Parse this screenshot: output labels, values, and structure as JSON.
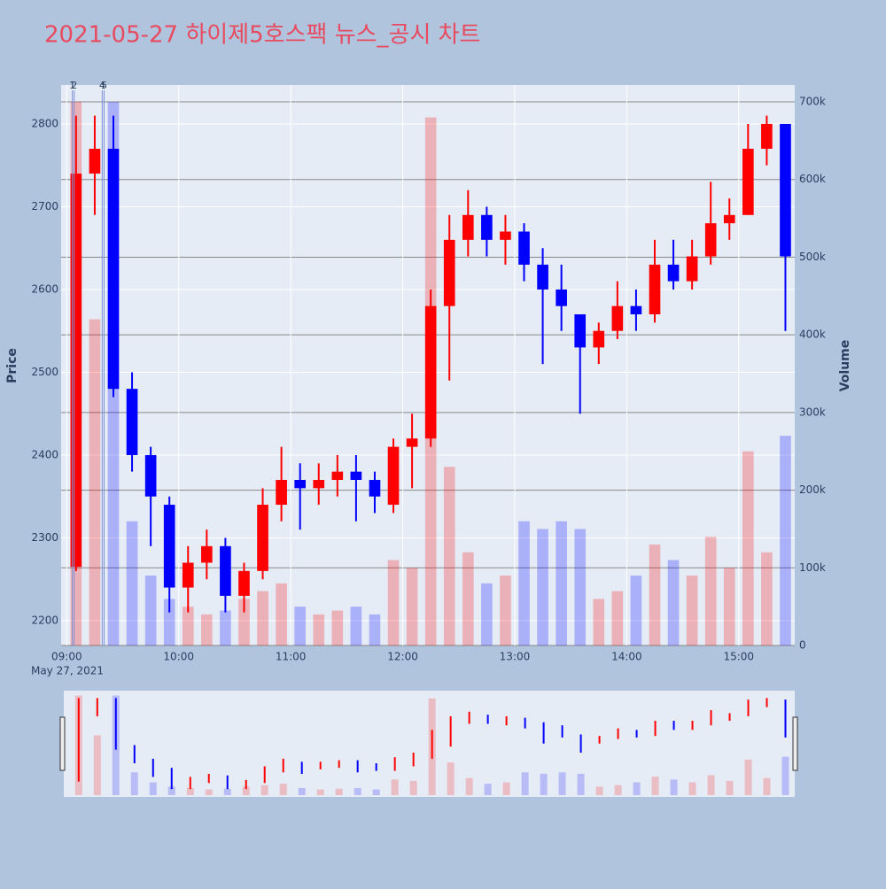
{
  "chart_data": {
    "type": "candlestick",
    "title": "2021-05-27 하이제5호스팩 뉴스_공시 차트",
    "y_label": "Price",
    "y2_label": "Volume",
    "x_date_label": "May 27, 2021",
    "x": [
      "09:00",
      "09:10",
      "09:20",
      "09:30",
      "09:40",
      "09:50",
      "10:00",
      "10:10",
      "10:20",
      "10:30",
      "10:40",
      "10:50",
      "11:00",
      "11:10",
      "11:20",
      "11:30",
      "11:40",
      "11:50",
      "12:00",
      "12:10",
      "12:20",
      "12:30",
      "12:40",
      "12:50",
      "13:00",
      "13:10",
      "13:20",
      "13:30",
      "13:40",
      "13:50",
      "14:00",
      "14:10",
      "14:20",
      "14:30",
      "14:40",
      "14:50",
      "15:00",
      "15:10",
      "15:20"
    ],
    "open": [
      2265,
      2740,
      2770,
      2480,
      2400,
      2340,
      2240,
      2270,
      2290,
      2230,
      2260,
      2340,
      2370,
      2360,
      2370,
      2380,
      2370,
      2340,
      2410,
      2420,
      2580,
      2660,
      2690,
      2660,
      2670,
      2630,
      2600,
      2570,
      2530,
      2550,
      2580,
      2570,
      2630,
      2610,
      2640,
      2680,
      2690,
      2770,
      2800
    ],
    "high": [
      2810,
      2810,
      2810,
      2500,
      2410,
      2350,
      2290,
      2310,
      2300,
      2270,
      2360,
      2410,
      2390,
      2390,
      2400,
      2400,
      2380,
      2420,
      2450,
      2600,
      2690,
      2720,
      2700,
      2690,
      2680,
      2650,
      2630,
      2570,
      2560,
      2610,
      2600,
      2660,
      2660,
      2660,
      2730,
      2710,
      2800,
      2810,
      2800
    ],
    "low": [
      2260,
      2690,
      2470,
      2380,
      2290,
      2210,
      2210,
      2250,
      2210,
      2210,
      2250,
      2320,
      2310,
      2340,
      2350,
      2320,
      2330,
      2330,
      2360,
      2410,
      2490,
      2640,
      2640,
      2630,
      2610,
      2510,
      2550,
      2450,
      2510,
      2540,
      2550,
      2560,
      2600,
      2600,
      2630,
      2660,
      2690,
      2750,
      2550
    ],
    "close": [
      2740,
      2770,
      2480,
      2400,
      2350,
      2240,
      2270,
      2290,
      2230,
      2260,
      2340,
      2370,
      2360,
      2370,
      2380,
      2370,
      2350,
      2410,
      2420,
      2580,
      2660,
      2690,
      2660,
      2670,
      2630,
      2600,
      2580,
      2530,
      2550,
      2580,
      2570,
      2630,
      2610,
      2640,
      2680,
      2690,
      2770,
      2800,
      2640
    ],
    "volume": [
      700000,
      420000,
      700000,
      160000,
      90000,
      60000,
      50000,
      40000,
      45000,
      60000,
      70000,
      80000,
      50000,
      40000,
      45000,
      50000,
      40000,
      110000,
      100000,
      680000,
      230000,
      120000,
      80000,
      90000,
      160000,
      150000,
      160000,
      150000,
      60000,
      70000,
      90000,
      130000,
      110000,
      90000,
      140000,
      100000,
      250000,
      120000,
      270000
    ],
    "up_color": "#ff0000",
    "down_color": "#0000ff",
    "xlim": [
      "08:57",
      "15:30"
    ],
    "xticks": [
      "09:00",
      "10:00",
      "11:00",
      "12:00",
      "13:00",
      "14:00",
      "15:00"
    ],
    "ylim": [
      2170,
      2847
    ],
    "yticks": [
      2200,
      2300,
      2400,
      2500,
      2600,
      2700,
      2800
    ],
    "y2lim": [
      0,
      721700
    ],
    "y2ticks": [
      0,
      {
        "value": 100000,
        "label": "100k"
      },
      {
        "value": 200000,
        "label": "200k"
      },
      {
        "value": 300000,
        "label": "300k"
      },
      {
        "value": 400000,
        "label": "400k"
      },
      {
        "value": 500000,
        "label": "500k"
      },
      {
        "value": 600000,
        "label": "600k"
      },
      {
        "value": 700000,
        "label": "700k"
      }
    ],
    "annotations": [
      {
        "x": "09:03",
        "text": "1"
      },
      {
        "x": "09:04",
        "text": "2"
      },
      {
        "x": "09:19",
        "text": "4"
      },
      {
        "x": "09:20",
        "text": "5"
      }
    ],
    "grid": true,
    "range_slider": true
  }
}
